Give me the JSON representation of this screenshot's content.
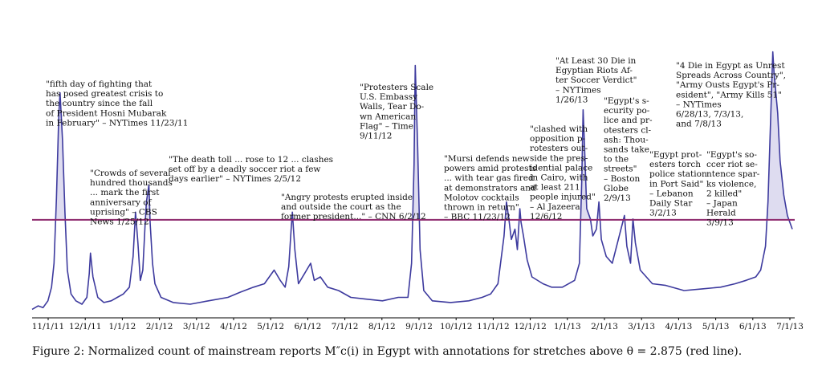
{
  "chart_data": {
    "type": "area",
    "xlabel": "",
    "ylabel": "",
    "threshold": 2.875,
    "colors": {
      "series": "#3d3a9e",
      "fill": "#dedcf0",
      "threshold": "#8e2a6e",
      "axis": "#000000"
    },
    "x_ticks": [
      "11/1/11",
      "12/1/11",
      "1/1/12",
      "2/1/12",
      "3/1/12",
      "4/1/12",
      "5/1/12",
      "6/1/12",
      "7/1/12",
      "8/1/12",
      "9/1/12",
      "10/1/12",
      "11/1/12",
      "12/1/12",
      "1/1/13",
      "2/1/13",
      "3/1/13",
      "4/1/13",
      "5/1/13",
      "6/1/13",
      "7/1/13"
    ],
    "x_start": "2011-11-01",
    "x_end": "2013-07-20",
    "series": [
      {
        "values": [
          [
            "2011-11-01",
            0.25
          ],
          [
            "2011-11-06",
            0.35
          ],
          [
            "2011-11-10",
            0.3
          ],
          [
            "2011-11-14",
            0.5
          ],
          [
            "2011-11-17",
            0.9
          ],
          [
            "2011-11-19",
            1.6
          ],
          [
            "2011-11-21",
            3.5
          ],
          [
            "2011-11-23",
            6.0
          ],
          [
            "2011-11-24",
            6.6
          ],
          [
            "2011-11-26",
            5.2
          ],
          [
            "2011-11-28",
            3.1
          ],
          [
            "2011-11-30",
            1.4
          ],
          [
            "2011-12-03",
            0.7
          ],
          [
            "2011-12-07",
            0.5
          ],
          [
            "2011-12-12",
            0.4
          ],
          [
            "2011-12-16",
            0.6
          ],
          [
            "2011-12-18",
            1.3
          ],
          [
            "2011-12-19",
            1.9
          ],
          [
            "2011-12-21",
            1.2
          ],
          [
            "2011-12-25",
            0.6
          ],
          [
            "2011-12-30",
            0.45
          ],
          [
            "2012-01-05",
            0.5
          ],
          [
            "2012-01-10",
            0.6
          ],
          [
            "2012-01-15",
            0.7
          ],
          [
            "2012-01-20",
            0.9
          ],
          [
            "2012-01-23",
            1.8
          ],
          [
            "2012-01-25",
            3.1
          ],
          [
            "2012-01-27",
            2.2
          ],
          [
            "2012-01-29",
            1.1
          ],
          [
            "2012-01-31",
            1.4
          ],
          [
            "2012-02-02",
            2.8
          ],
          [
            "2012-02-03",
            3.4
          ],
          [
            "2012-02-05",
            3.9
          ],
          [
            "2012-02-06",
            2.8
          ],
          [
            "2012-02-08",
            1.6
          ],
          [
            "2012-02-10",
            1.0
          ],
          [
            "2012-02-15",
            0.6
          ],
          [
            "2012-02-25",
            0.45
          ],
          [
            "2012-03-10",
            0.4
          ],
          [
            "2012-03-25",
            0.5
          ],
          [
            "2012-04-10",
            0.6
          ],
          [
            "2012-04-20",
            0.75
          ],
          [
            "2012-05-01",
            0.9
          ],
          [
            "2012-05-10",
            1.0
          ],
          [
            "2012-05-18",
            1.4
          ],
          [
            "2012-05-23",
            1.1
          ],
          [
            "2012-05-27",
            0.9
          ],
          [
            "2012-05-30",
            1.5
          ],
          [
            "2012-06-01",
            2.6
          ],
          [
            "2012-06-02",
            3.1
          ],
          [
            "2012-06-04",
            2.0
          ],
          [
            "2012-06-07",
            1.0
          ],
          [
            "2012-06-12",
            1.3
          ],
          [
            "2012-06-17",
            1.6
          ],
          [
            "2012-06-20",
            1.1
          ],
          [
            "2012-06-25",
            1.2
          ],
          [
            "2012-07-01",
            0.9
          ],
          [
            "2012-07-10",
            0.8
          ],
          [
            "2012-07-20",
            0.6
          ],
          [
            "2012-08-01",
            0.55
          ],
          [
            "2012-08-15",
            0.5
          ],
          [
            "2012-08-28",
            0.6
          ],
          [
            "2012-09-05",
            0.6
          ],
          [
            "2012-09-08",
            1.6
          ],
          [
            "2012-09-10",
            4.5
          ],
          [
            "2012-09-11",
            7.4
          ],
          [
            "2012-09-13",
            5.0
          ],
          [
            "2012-09-15",
            2.0
          ],
          [
            "2012-09-18",
            0.8
          ],
          [
            "2012-09-25",
            0.5
          ],
          [
            "2012-10-10",
            0.45
          ],
          [
            "2012-10-25",
            0.5
          ],
          [
            "2012-11-05",
            0.6
          ],
          [
            "2012-11-12",
            0.7
          ],
          [
            "2012-11-18",
            1.0
          ],
          [
            "2012-11-23",
            2.4
          ],
          [
            "2012-11-25",
            3.4
          ],
          [
            "2012-11-27",
            2.9
          ],
          [
            "2012-11-29",
            2.3
          ],
          [
            "2012-12-02",
            2.6
          ],
          [
            "2012-12-04",
            2.0
          ],
          [
            "2012-12-06",
            3.2
          ],
          [
            "2012-12-07",
            2.8
          ],
          [
            "2012-12-09",
            2.4
          ],
          [
            "2012-12-12",
            1.7
          ],
          [
            "2012-12-16",
            1.2
          ],
          [
            "2012-12-25",
            1.0
          ],
          [
            "2013-01-01",
            0.9
          ],
          [
            "2013-01-10",
            0.9
          ],
          [
            "2013-01-20",
            1.1
          ],
          [
            "2013-01-24",
            1.6
          ],
          [
            "2013-01-26",
            4.1
          ],
          [
            "2013-01-27",
            6.1
          ],
          [
            "2013-01-28",
            5.2
          ],
          [
            "2013-01-30",
            3.2
          ],
          [
            "2013-02-02",
            2.9
          ],
          [
            "2013-02-04",
            2.4
          ],
          [
            "2013-02-07",
            2.6
          ],
          [
            "2013-02-09",
            3.4
          ],
          [
            "2013-02-11",
            2.3
          ],
          [
            "2013-02-15",
            1.8
          ],
          [
            "2013-02-20",
            1.6
          ],
          [
            "2013-02-25",
            2.3
          ],
          [
            "2013-03-02",
            3.0
          ],
          [
            "2013-03-04",
            2.1
          ],
          [
            "2013-03-07",
            1.6
          ],
          [
            "2013-03-09",
            2.9
          ],
          [
            "2013-03-11",
            2.2
          ],
          [
            "2013-03-15",
            1.4
          ],
          [
            "2013-03-25",
            1.0
          ],
          [
            "2013-04-05",
            0.95
          ],
          [
            "2013-04-20",
            0.8
          ],
          [
            "2013-05-05",
            0.85
          ],
          [
            "2013-05-20",
            0.9
          ],
          [
            "2013-06-01",
            1.0
          ],
          [
            "2013-06-10",
            1.1
          ],
          [
            "2013-06-18",
            1.2
          ],
          [
            "2013-06-22",
            1.4
          ],
          [
            "2013-06-26",
            2.1
          ],
          [
            "2013-06-28",
            3.4
          ],
          [
            "2013-06-30",
            5.6
          ],
          [
            "2013-07-02",
            7.8
          ],
          [
            "2013-07-03",
            7.2
          ],
          [
            "2013-07-06",
            6.0
          ],
          [
            "2013-07-08",
            4.6
          ],
          [
            "2013-07-11",
            3.6
          ],
          [
            "2013-07-14",
            3.0
          ],
          [
            "2013-07-18",
            2.6
          ]
        ]
      }
    ],
    "annotations": [
      {
        "lines": [
          "\"fifth day of fighting that",
          "has posed greatest crisis to",
          "the country since the fall",
          "of President Hosni Mubarak",
          "in February\" – NYTimes 11/23/11"
        ]
      },
      {
        "lines": [
          "\"Crowds of several",
          "hundred thousands",
          "... mark the first",
          "anniversary of",
          "uprising\" – CBS",
          "News 1/25/12"
        ]
      },
      {
        "lines": [
          "\"The death toll ... rose to 12 ... clashes",
          "set off by a deadly soccer riot a few",
          "days earlier\" – NYTimes 2/5/12"
        ]
      },
      {
        "lines": [
          "\"Angry protests erupted inside",
          "and outside the court as the",
          "former president...\" – CNN 6/2/12"
        ]
      },
      {
        "lines": [
          "\"Protesters Scale",
          "U.S. Embassy",
          "Walls, Tear Do-",
          "wn American",
          "Flag\" – Time",
          "9/11/12"
        ]
      },
      {
        "lines": [
          "\"Mursi defends new",
          "powers amid protests",
          "... with tear gas fired",
          "at demonstrators and",
          "Molotov cocktails",
          "thrown in return\"",
          "– BBC 11/23/12"
        ]
      },
      {
        "lines": [
          "\"clashed with",
          "opposition p-",
          "rotesters out-",
          "side the pres-",
          "idential palace",
          "in Cairo, with",
          "at least 211",
          "people injured\"",
          "– Al Jazeera",
          "12/6/12"
        ]
      },
      {
        "lines": [
          "\"At Least 30 Die in",
          "Egyptian Riots Af-",
          "ter Soccer Verdict\"",
          "– NYTimes",
          "1/26/13"
        ]
      },
      {
        "lines": [
          "\"Egypt's s-",
          "ecurity po-",
          "lice and pr-",
          "otesters cl-",
          "ash: Thou-",
          "sands take",
          "to the",
          "streets\"",
          "– Boston",
          "Globe",
          "2/9/13"
        ]
      },
      {
        "lines": [
          "\"Egypt prot-",
          "esters torch",
          "police station",
          "in Port Said\"",
          "– Lebanon",
          "Daily Star",
          "3/2/13"
        ]
      },
      {
        "lines": [
          "\"Egypt's so-",
          "ccer riot se-",
          "ntence spar-",
          "ks violence,",
          "2 killed\"",
          "– Japan",
          "Herald",
          "3/9/13"
        ]
      },
      {
        "lines": [
          "\"4 Die in Egypt as Unrest",
          "Spreads Across Country\",",
          "\"Army Ousts Egypt's Pr-",
          "esident\", \"Army Kills 51\"",
          "– NYTimes",
          "6/28/13, 7/3/13,",
          "and 7/8/13"
        ]
      }
    ]
  },
  "caption": "Figure 2: Normalized count of mainstream reports M″c(i) in Egypt with annotations for stretches above θ = 2.875 (red line)."
}
